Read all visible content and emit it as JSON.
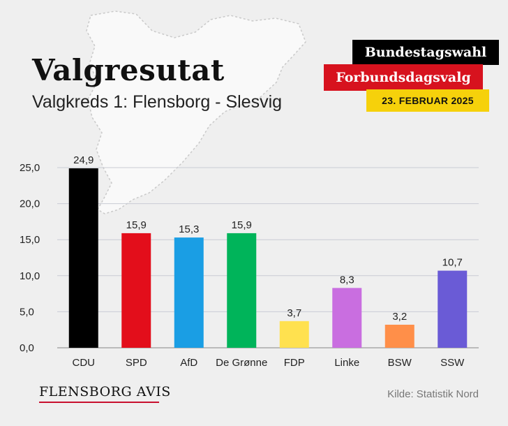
{
  "header": {
    "title": "Valgresutat",
    "subtitle": "Valgkreds 1: Flensborg - Slesvig"
  },
  "badges": {
    "line1": "Bundestagswahl",
    "line2": "Forbundsdagsvalg",
    "date": "23. FEBRUAR 2025"
  },
  "footer": {
    "logo": "FLENSBORG AVIS",
    "source": "Kilde: Statistik Nord"
  },
  "colors": {
    "background": "#efefef",
    "badge_black": "#000000",
    "badge_red": "#d7121e",
    "badge_yellow": "#f6d10b"
  },
  "chart_data": {
    "type": "bar",
    "categories": [
      "CDU",
      "SPD",
      "AfD",
      "De Grønne",
      "FDP",
      "Linke",
      "BSW",
      "SSW"
    ],
    "values": [
      24.9,
      15.9,
      15.3,
      15.9,
      3.7,
      8.3,
      3.2,
      10.7
    ],
    "value_labels": [
      "24,9",
      "15,9",
      "15,3",
      "15,9",
      "3,7",
      "8,3",
      "3,2",
      "10,7"
    ],
    "colors": [
      "#000000",
      "#e30e1b",
      "#1a9ee4",
      "#00b45a",
      "#ffe14f",
      "#c96ee0",
      "#ff8f49",
      "#6a5bd6"
    ],
    "yticks": [
      "0,0",
      "5,0",
      "10,0",
      "15,0",
      "20,0",
      "25,0"
    ],
    "ytick_values": [
      0,
      5,
      10,
      15,
      20,
      25
    ],
    "ylim": [
      0,
      25
    ],
    "grid": true,
    "legend": "none"
  }
}
